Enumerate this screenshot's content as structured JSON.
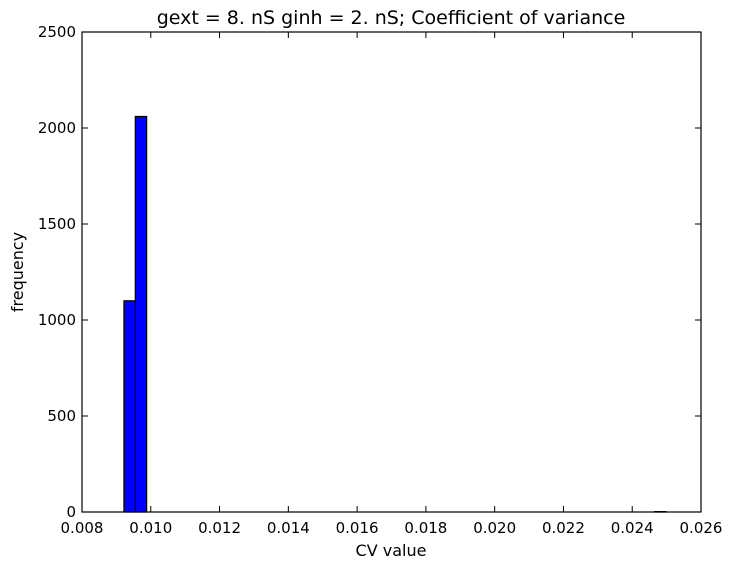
{
  "chart_data": {
    "type": "bar",
    "title": "gext = 8. nS ginh = 2. nS; Coefficient of variance",
    "xlabel": "CV value",
    "ylabel": "frequency",
    "xlim": [
      0.008,
      0.026
    ],
    "ylim": [
      0,
      2500
    ],
    "xticks": [
      "0.008",
      "0.010",
      "0.012",
      "0.014",
      "0.016",
      "0.018",
      "0.020",
      "0.022",
      "0.024",
      "0.026"
    ],
    "yticks": [
      "0",
      "500",
      "1000",
      "1500",
      "2000",
      "2500"
    ],
    "bar_color": "#0000ff",
    "bins": [
      {
        "x0": 0.00922,
        "x1": 0.00955,
        "value": 1100
      },
      {
        "x0": 0.00955,
        "x1": 0.00988,
        "value": 2060
      },
      {
        "x0": 0.02465,
        "x1": 0.02498,
        "value": 2
      }
    ],
    "grid": false,
    "legend": "none"
  }
}
